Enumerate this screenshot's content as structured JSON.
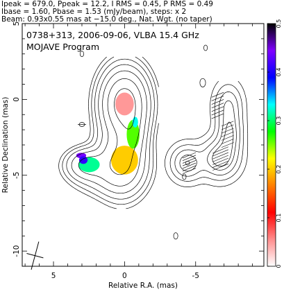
{
  "header": {
    "line1": "Ipeak = 679.0, Ppeak = 12.2, I RMS = 0.45, P RMS = 0.49",
    "line2": "Ibase = 1.60, Pbase = 1.53 (mJy/beam), steps: x 2",
    "line3": "Beam: 0.93x0.55 mas at −15.0 deg., Nat. Wgt. (no taper)"
  },
  "chart_data": {
    "type": "contour",
    "title": "0738+313, 2006-09-06, VLBA 15.4 GHz",
    "subtitle": "MOJAVE Program",
    "xlabel": "Relative R.A. (mas)",
    "ylabel": "Relative Declination (mas)",
    "xlim": [
      7.2,
      -9.8
    ],
    "ylim": [
      -11.0,
      5.0
    ],
    "x_ticks": [
      {
        "v": 5,
        "label": "5"
      },
      {
        "v": 0,
        "label": "0"
      },
      {
        "v": -5,
        "label": "-5"
      }
    ],
    "y_ticks": [
      {
        "v": 5,
        "label": "5"
      },
      {
        "v": 0,
        "label": "0"
      },
      {
        "v": -5,
        "label": "-5"
      },
      {
        "v": -10,
        "label": "-10"
      }
    ],
    "colorbar": {
      "range": [
        0,
        0.5
      ],
      "ticks": [
        "0",
        "0.1",
        "0.2",
        "0.3",
        "0.4",
        "0.5"
      ],
      "colors": [
        "#ffffff",
        "#ff8c8c",
        "#ff0000",
        "#ff8000",
        "#ffff00",
        "#00ff00",
        "#00ffff",
        "#0000ff",
        "#8000ff",
        "#000000"
      ]
    },
    "beam": {
      "major_mas": 0.93,
      "minor_mas": 0.55,
      "pa_deg": -15.0
    },
    "images": [
      {
        "name": "total-intensity",
        "components": [
          {
            "x": 0.0,
            "y": -0.3,
            "sx": 0.85,
            "sy": 1.2,
            "amp": 1.0
          },
          {
            "x": 0.2,
            "y": -4.0,
            "sx": 0.9,
            "sy": 1.2,
            "amp": 0.42
          },
          {
            "x": -0.5,
            "y": -2.2,
            "sx": 0.55,
            "sy": 0.9,
            "amp": 0.28
          },
          {
            "x": 2.6,
            "y": -4.3,
            "sx": 0.8,
            "sy": 0.55,
            "amp": 0.22
          },
          {
            "x": 1.3,
            "y": -4.8,
            "sx": 1.3,
            "sy": 0.8,
            "amp": 0.1
          }
        ],
        "level_fractions": [
          0.012,
          0.024,
          0.048,
          0.096,
          0.19,
          0.38,
          0.7
        ]
      },
      {
        "name": "polarized-intensity",
        "offset_x": -6.9,
        "components": [
          {
            "x": -0.4,
            "y": -0.4,
            "sx": 0.6,
            "sy": 0.9,
            "amp": 0.65
          },
          {
            "x": -0.5,
            "y": -2.3,
            "sx": 0.55,
            "sy": 0.9,
            "amp": 0.8
          },
          {
            "x": 0.2,
            "y": -3.9,
            "sx": 0.8,
            "sy": 0.8,
            "amp": 1.0
          },
          {
            "x": 2.5,
            "y": -4.2,
            "sx": 0.7,
            "sy": 0.7,
            "amp": 0.85
          }
        ],
        "level_fractions": [
          0.07,
          0.2,
          0.4,
          0.65,
          0.85
        ]
      }
    ],
    "fractional_polarization_regions": [
      {
        "x": 0.0,
        "y": -0.3,
        "rx": 0.65,
        "ry": 0.75,
        "frac": 0.05
      },
      {
        "x": 0.0,
        "y": -4.0,
        "rx": 0.95,
        "ry": 0.95,
        "frac": 0.2
      },
      {
        "x": -0.6,
        "y": -2.3,
        "rx": 0.45,
        "ry": 0.95,
        "frac": 0.26
      },
      {
        "x": -0.75,
        "y": -1.5,
        "rx": 0.2,
        "ry": 0.35,
        "frac": 0.33
      },
      {
        "x": 2.5,
        "y": -4.3,
        "rx": 0.75,
        "ry": 0.5,
        "frac": 0.31
      },
      {
        "x": 3.05,
        "y": -3.7,
        "rx": 0.35,
        "ry": 0.18,
        "frac": 0.44
      },
      {
        "x": 2.9,
        "y": -4.0,
        "rx": 0.3,
        "ry": 0.25,
        "frac": 0.41
      }
    ],
    "noise_contours": [
      {
        "x": 3.0,
        "y": 3.0,
        "r": 0.13
      },
      {
        "x": -5.7,
        "y": 3.4,
        "r": 0.13
      },
      {
        "x": -5.5,
        "y": 1.1,
        "r": 0.2
      },
      {
        "x": -3.6,
        "y": -9.0,
        "r": 0.15
      },
      {
        "x": -4.2,
        "y": -5.1,
        "r": 0.13
      }
    ]
  }
}
